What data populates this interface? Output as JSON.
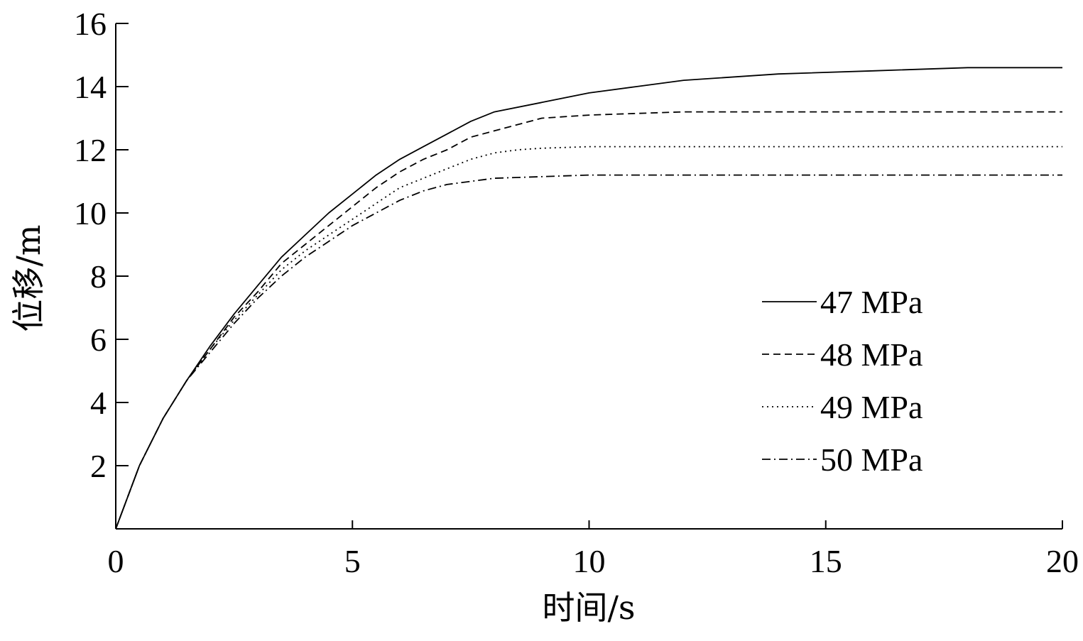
{
  "chart_data": {
    "type": "line",
    "title": "",
    "xlabel": "时间/s",
    "ylabel": "位移/m",
    "xlim": [
      0,
      20
    ],
    "ylim": [
      0,
      16
    ],
    "xticks": [
      0,
      5,
      10,
      15,
      20
    ],
    "yticks": [
      2,
      4,
      6,
      8,
      10,
      12,
      14,
      16
    ],
    "grid": false,
    "legend_position": "right",
    "series": [
      {
        "name": "47 MPa",
        "style": "solid",
        "x": [
          0,
          0.5,
          1,
          1.5,
          2,
          2.5,
          3,
          3.5,
          4,
          4.5,
          5,
          5.5,
          6,
          6.5,
          7,
          7.5,
          8,
          9,
          10,
          11,
          12,
          14,
          16,
          18,
          20
        ],
        "values": [
          0,
          2.0,
          3.5,
          4.7,
          5.8,
          6.8,
          7.7,
          8.6,
          9.3,
          10.0,
          10.6,
          11.2,
          11.7,
          12.1,
          12.5,
          12.9,
          13.2,
          13.5,
          13.8,
          14.0,
          14.2,
          14.4,
          14.5,
          14.6,
          14.6
        ]
      },
      {
        "name": "48 MPa",
        "style": "dashed",
        "x": [
          0,
          0.5,
          1,
          1.5,
          2,
          2.5,
          3,
          3.5,
          4,
          4.5,
          5,
          5.5,
          6,
          6.5,
          7,
          7.5,
          8,
          8.5,
          9,
          10,
          11,
          12,
          14,
          16,
          20
        ],
        "values": [
          0,
          2.0,
          3.5,
          4.7,
          5.7,
          6.7,
          7.5,
          8.4,
          9.0,
          9.6,
          10.2,
          10.8,
          11.3,
          11.7,
          12.0,
          12.4,
          12.6,
          12.8,
          13.0,
          13.1,
          13.15,
          13.2,
          13.2,
          13.2,
          13.2
        ]
      },
      {
        "name": "49 MPa",
        "style": "dotted",
        "x": [
          0,
          0.5,
          1,
          1.5,
          2,
          2.5,
          3,
          3.5,
          4,
          4.5,
          5,
          5.5,
          6,
          6.5,
          7,
          7.5,
          8,
          8.5,
          9,
          10,
          12,
          14,
          16,
          20
        ],
        "values": [
          0,
          2.0,
          3.5,
          4.7,
          5.7,
          6.6,
          7.4,
          8.2,
          8.8,
          9.3,
          9.8,
          10.3,
          10.8,
          11.1,
          11.4,
          11.7,
          11.9,
          12.0,
          12.05,
          12.1,
          12.1,
          12.1,
          12.1,
          12.1
        ]
      },
      {
        "name": "50 MPa",
        "style": "dashdot",
        "x": [
          0,
          0.5,
          1,
          1.5,
          2,
          2.5,
          3,
          3.5,
          4,
          4.5,
          5,
          5.5,
          6,
          6.5,
          7,
          7.5,
          8,
          10,
          12,
          14,
          16,
          20
        ],
        "values": [
          0,
          2.0,
          3.5,
          4.7,
          5.6,
          6.5,
          7.3,
          8.0,
          8.6,
          9.1,
          9.6,
          10.0,
          10.4,
          10.7,
          10.9,
          11.0,
          11.1,
          11.2,
          11.2,
          11.2,
          11.2,
          11.2
        ]
      }
    ]
  }
}
